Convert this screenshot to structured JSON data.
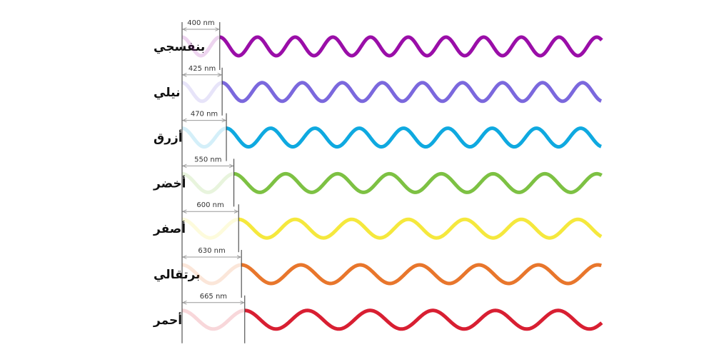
{
  "rows": [
    {
      "label": "بنفسجي",
      "wavelength": 400,
      "wavelength_label": "400 nm",
      "color": "#9a0ea8"
    },
    {
      "label": "نيلي",
      "wavelength": 425,
      "wavelength_label": "425 nm",
      "color": "#7b68dd"
    },
    {
      "label": "أزرق",
      "wavelength": 470,
      "wavelength_label": "470 nm",
      "color": "#0fa9e0"
    },
    {
      "label": "أخضر",
      "wavelength": 550,
      "wavelength_label": "550 nm",
      "color": "#7dc143"
    },
    {
      "label": "أصفر",
      "wavelength": 600,
      "wavelength_label": "600 nm",
      "color": "#f5e83d"
    },
    {
      "label": "برتقالي",
      "wavelength": 630,
      "wavelength_label": "630 nm",
      "color": "#e8762c"
    },
    {
      "label": "أحمر",
      "wavelength": 665,
      "wavelength_label": "665 nm",
      "color": "#d81f32"
    }
  ]
}
